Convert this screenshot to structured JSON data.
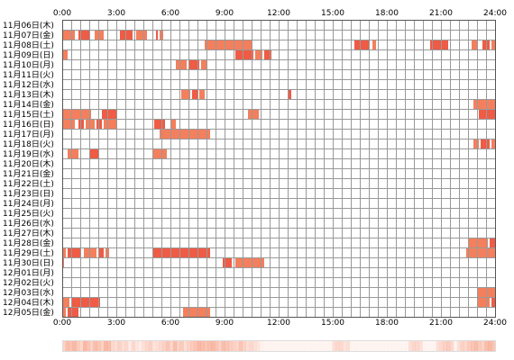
{
  "chart_data": {
    "type": "heatmap",
    "x_ticks": [
      "0:00",
      "3:00",
      "6:00",
      "9:00",
      "12:00",
      "15:00",
      "18:00",
      "21:00",
      "24:00"
    ],
    "x_unit": "hours",
    "xlim": [
      0,
      24
    ],
    "grid": true,
    "colors": {
      "bar": "#f47f5c",
      "bar_dark": "#ef5b45",
      "grid": "#999999",
      "bg": "#ffffff",
      "frame": "#555555"
    },
    "days": [
      {
        "label": "11月06日(木)",
        "spans": []
      },
      {
        "label": "11月07日(金)",
        "spans": [
          [
            0.0,
            0.7
          ],
          [
            0.9,
            1.5
          ],
          [
            1.8,
            2.3
          ],
          [
            3.2,
            3.9
          ],
          [
            4.1,
            4.7
          ],
          [
            5.2,
            5.3
          ],
          [
            5.4,
            5.6
          ]
        ]
      },
      {
        "label": "11月08日(土)",
        "spans": [
          [
            7.9,
            10.5
          ],
          [
            16.2,
            17.0
          ],
          [
            17.2,
            17.4
          ],
          [
            20.4,
            21.4
          ],
          [
            22.7,
            23.0
          ],
          [
            23.3,
            23.7
          ],
          [
            23.8,
            24.0
          ]
        ]
      },
      {
        "label": "11月09日(日)",
        "spans": [
          [
            0.0,
            0.3
          ],
          [
            9.6,
            10.6
          ],
          [
            10.7,
            11.1
          ],
          [
            11.2,
            11.6
          ]
        ]
      },
      {
        "label": "11月10日(月)",
        "spans": [
          [
            6.3,
            6.9
          ],
          [
            7.0,
            7.6
          ],
          [
            7.7,
            8.0
          ]
        ]
      },
      {
        "label": "11月11日(火)",
        "spans": []
      },
      {
        "label": "11月12日(水)",
        "spans": []
      },
      {
        "label": "11月13日(木)",
        "spans": [
          [
            6.6,
            7.1
          ],
          [
            7.2,
            7.5
          ],
          [
            7.6,
            7.9
          ],
          [
            12.5,
            12.7
          ]
        ]
      },
      {
        "label": "11月14日(金)",
        "spans": [
          [
            22.8,
            24.0
          ]
        ]
      },
      {
        "label": "11月15日(土)",
        "spans": [
          [
            0.0,
            1.6
          ],
          [
            2.2,
            3.0
          ],
          [
            10.3,
            10.9
          ],
          [
            23.1,
            24.0
          ]
        ]
      },
      {
        "label": "11月16日(日)",
        "spans": [
          [
            0.0,
            0.7
          ],
          [
            0.9,
            1.2
          ],
          [
            1.3,
            1.8
          ],
          [
            1.9,
            2.2
          ],
          [
            2.3,
            3.0
          ],
          [
            5.1,
            5.7
          ],
          [
            6.0,
            6.3
          ]
        ]
      },
      {
        "label": "11月17日(月)",
        "spans": [
          [
            5.4,
            8.2
          ]
        ]
      },
      {
        "label": "11月18日(火)",
        "spans": [
          [
            22.8,
            23.1
          ],
          [
            23.2,
            23.7
          ],
          [
            23.8,
            24.0
          ]
        ]
      },
      {
        "label": "11月19日(水)",
        "spans": [
          [
            0.3,
            0.9
          ],
          [
            1.5,
            2.0
          ],
          [
            5.0,
            5.8
          ]
        ]
      },
      {
        "label": "11月20日(木)",
        "spans": []
      },
      {
        "label": "11月21日(金)",
        "spans": []
      },
      {
        "label": "11月22日(土)",
        "spans": []
      },
      {
        "label": "11月23日(日)",
        "spans": []
      },
      {
        "label": "11月24日(月)",
        "spans": []
      },
      {
        "label": "11月25日(火)",
        "spans": []
      },
      {
        "label": "11月26日(水)",
        "spans": []
      },
      {
        "label": "11月27日(木)",
        "spans": []
      },
      {
        "label": "11月28日(金)",
        "spans": [
          [
            22.5,
            23.6
          ],
          [
            23.7,
            24.0
          ]
        ]
      },
      {
        "label": "11月29日(土)",
        "spans": [
          [
            0.0,
            0.2
          ],
          [
            0.3,
            1.0
          ],
          [
            1.2,
            1.9
          ],
          [
            2.0,
            2.3
          ],
          [
            2.4,
            2.6
          ],
          [
            5.0,
            8.2
          ],
          [
            22.4,
            24.0
          ]
        ]
      },
      {
        "label": "11月30日(日)",
        "spans": [
          [
            0.0,
            0.1
          ],
          [
            8.9,
            9.4
          ],
          [
            9.6,
            11.2
          ]
        ]
      },
      {
        "label": "12月01日(月)",
        "spans": []
      },
      {
        "label": "12月02日(火)",
        "spans": []
      },
      {
        "label": "12月03日(水)",
        "spans": [
          [
            23.0,
            24.0
          ]
        ]
      },
      {
        "label": "12月04日(木)",
        "spans": [
          [
            0.0,
            0.4
          ],
          [
            0.5,
            2.1
          ],
          [
            23.0,
            23.7
          ],
          [
            23.8,
            24.0
          ]
        ]
      },
      {
        "label": "12月05日(金)",
        "spans": [
          [
            0.0,
            0.2
          ],
          [
            0.3,
            0.9
          ],
          [
            6.7,
            8.2
          ]
        ]
      }
    ],
    "summary": [
      0.35,
      0.5,
      0.45,
      0.55,
      0.4,
      0.3,
      0.55,
      0.45,
      0.35,
      0.5,
      0.45,
      0.35,
      0.55,
      0.5,
      0.3,
      0.25,
      0.35,
      0.25,
      0.3,
      0.15,
      0.3,
      0.2,
      0.15,
      0.25,
      0.3,
      0.35,
      0.2,
      0.25,
      0.3,
      0.35,
      0.45,
      0.3,
      0.5,
      0.35,
      0.4,
      0.25,
      0.35,
      0.4,
      0.45,
      0.55,
      0.5,
      0.45,
      0.5,
      0.55,
      0.45,
      0.35,
      0.5,
      0.45,
      0.4,
      0.35,
      0.3,
      0.45,
      0.35,
      0.25,
      0.3,
      0.25,
      0.2,
      0.1,
      0.0,
      0.0,
      0.0,
      0.0,
      0.0,
      0.0,
      0.0,
      0.0,
      0.0,
      0.0,
      0.0,
      0.0,
      0.0,
      0.0,
      0.0,
      0.0,
      0.0,
      0.0,
      0.0,
      0.0,
      0.25,
      0.3,
      0.3,
      0.2,
      0.25,
      0.0,
      0.0,
      0.0,
      0.0,
      0.0,
      0.0,
      0.0,
      0.0,
      0.0,
      0.0,
      0.0,
      0.0,
      0.0,
      0.0,
      0.0,
      0.0,
      0.0,
      0.25,
      0.3,
      0.3,
      0.25,
      0.0,
      0.0,
      0.0,
      0.0,
      0.25,
      0.3,
      0.35,
      0.4,
      0.3,
      0.0,
      0.25,
      0.35,
      0.3,
      0.4,
      0.45,
      0.5,
      0.4,
      0.35,
      0.5,
      0.55,
      0.45
    ]
  }
}
